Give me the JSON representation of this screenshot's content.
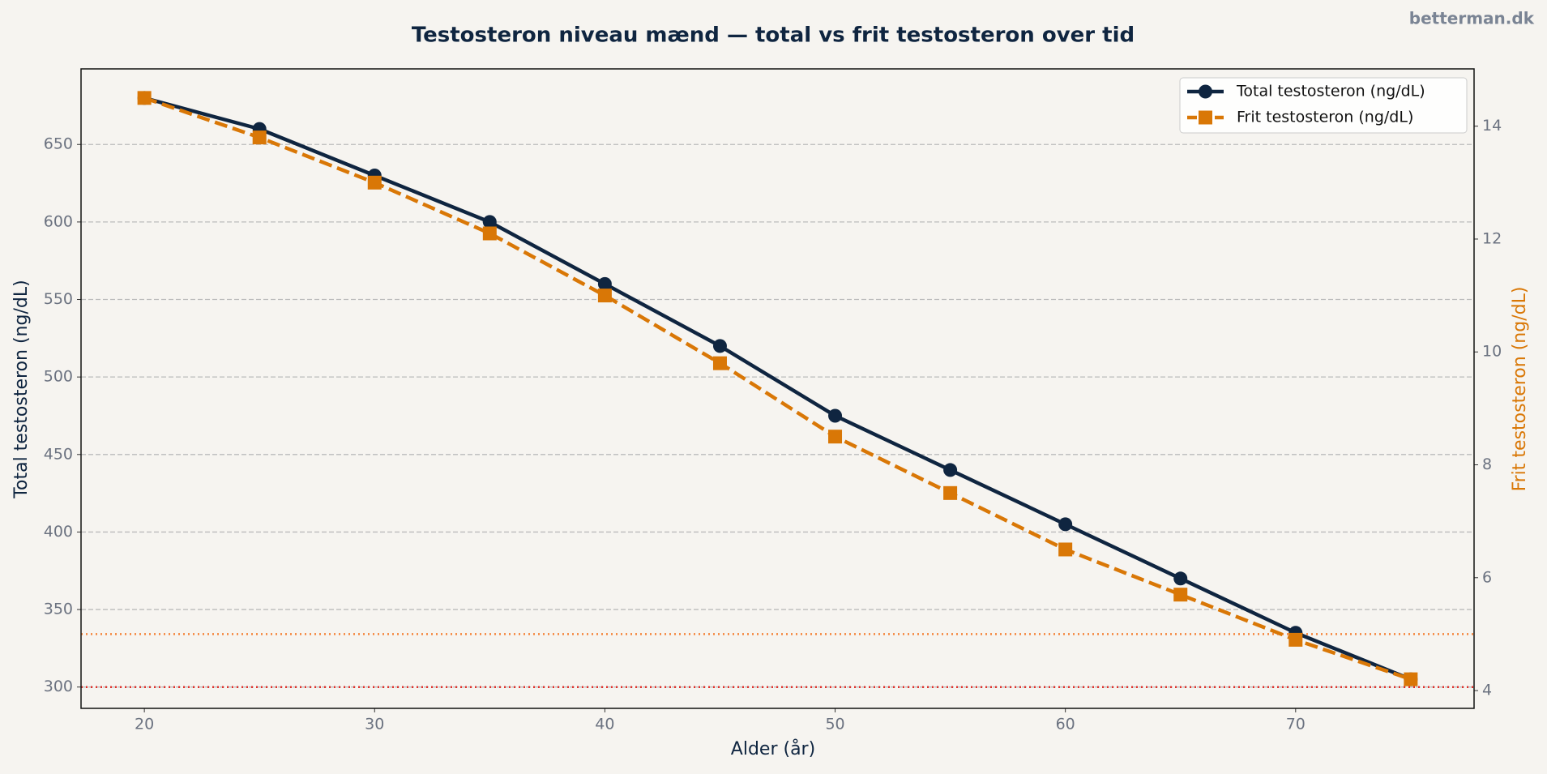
{
  "chart_data": {
    "type": "line",
    "title": "Testosteron niveau mænd — total vs frit testosteron over tid",
    "watermark": "betterman.dk",
    "x_label": "Alder (år)",
    "y_label": "Total testosteron (ng/dL)",
    "y2_label": "Frit testosteron (ng/dL)",
    "x": [
      20,
      25,
      30,
      35,
      40,
      45,
      50,
      55,
      60,
      65,
      70,
      75
    ],
    "series": [
      {
        "name": "Total testosteron (ng/dL)",
        "color": "#0f2540",
        "marker": "circle",
        "dash": "solid",
        "values": [
          680,
          660,
          630,
          600,
          560,
          520,
          475,
          440,
          405,
          370,
          335,
          305
        ]
      },
      {
        "name": "Frit testosteron (ng/dL)",
        "color": "#d97706",
        "marker": "square",
        "dash": "dashed",
        "axis": "y2",
        "values": [
          14.5,
          13.8,
          13.0,
          12.1,
          11.0,
          9.8,
          8.5,
          7.5,
          6.5,
          5.7,
          4.9,
          4.2
        ]
      }
    ],
    "reference_lines": [
      {
        "value": 300,
        "axis": "y",
        "color": "#e0302a"
      },
      {
        "value": 5,
        "axis": "y2",
        "color": "#f5843a"
      }
    ],
    "xlim": [
      17.25,
      77.75
    ],
    "xticks": [
      20,
      30,
      40,
      50,
      60,
      70
    ],
    "ylim": [
      286.25,
      698.75
    ],
    "yticks": [
      300,
      350,
      400,
      450,
      500,
      550,
      600,
      650
    ],
    "y2lim": [
      3.685,
      15.015
    ],
    "y2ticks": [
      4,
      6,
      8,
      10,
      12,
      14
    ],
    "grid": true,
    "legend": "upper right"
  }
}
